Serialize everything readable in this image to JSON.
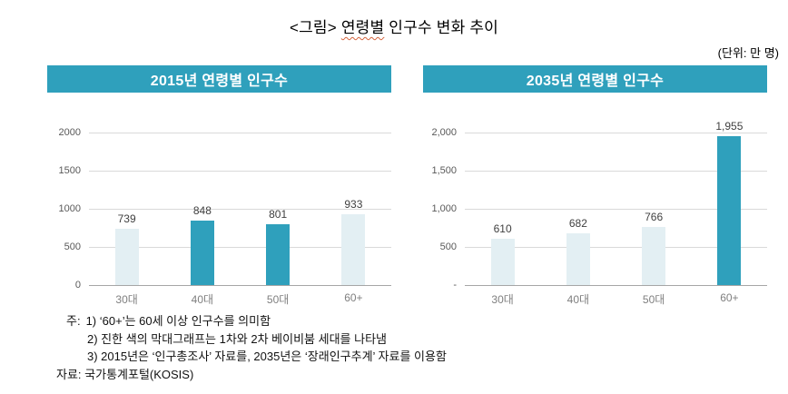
{
  "page": {
    "title_prefix": "<그림> ",
    "title_underlined": "연령별",
    "title_suffix": " 인구수 변화 추이",
    "unit_label": "(단위: 만 명)"
  },
  "colors": {
    "accent_teal": "#2FA0BC",
    "bar_light": "#E3EFF3",
    "gridline": "#D9D9D9",
    "axis_line": "#A6A6A6",
    "tick_text": "#595959",
    "category_text": "#7F7F7F",
    "value_text": "#404040",
    "header_text": "#FFFFFF",
    "squiggle": "#D4633C"
  },
  "chart_data": [
    {
      "type": "bar",
      "title": "2015년 연령별 인구수",
      "categories": [
        "30대",
        "40대",
        "50대",
        "60+"
      ],
      "values": [
        739,
        848,
        801,
        933
      ],
      "value_labels": [
        "739",
        "848",
        "801",
        "933"
      ],
      "highlighted": [
        false,
        true,
        true,
        false
      ],
      "ylim": [
        0,
        2000
      ],
      "yticks": [
        {
          "label": "0",
          "value": 0
        },
        {
          "label": "500",
          "value": 500
        },
        {
          "label": "1000",
          "value": 1000
        },
        {
          "label": "1500",
          "value": 1500
        },
        {
          "label": "2000",
          "value": 2000
        }
      ],
      "grid": true,
      "legend": "none"
    },
    {
      "type": "bar",
      "title": "2035년 연령별 인구수",
      "categories": [
        "30대",
        "40대",
        "50대",
        "60+"
      ],
      "values": [
        610,
        682,
        766,
        1955
      ],
      "value_labels": [
        "610",
        "682",
        "766",
        "1,955"
      ],
      "highlighted": [
        false,
        false,
        false,
        true
      ],
      "ylim": [
        0,
        2000
      ],
      "yticks": [
        {
          "label": "-",
          "value": 0
        },
        {
          "label": "500",
          "value": 500
        },
        {
          "label": "1,000",
          "value": 1000
        },
        {
          "label": "1,500",
          "value": 1500
        },
        {
          "label": "2,000",
          "value": 2000
        }
      ],
      "grid": true,
      "legend": "none"
    }
  ],
  "notes": {
    "label": "주:",
    "items": [
      "1) ‘60+’는 60세 이상 인구수를 의미함",
      "2) 진한 색의 막대그래프는 1차와 2차 베이비붐 세대를 나타냄",
      "3) 2015년은 ‘인구총조사’ 자료를, 2035년은 ‘장래인구추계’ 자료를 이용함"
    ],
    "source": "자료: 국가통계포털(KOSIS)"
  }
}
